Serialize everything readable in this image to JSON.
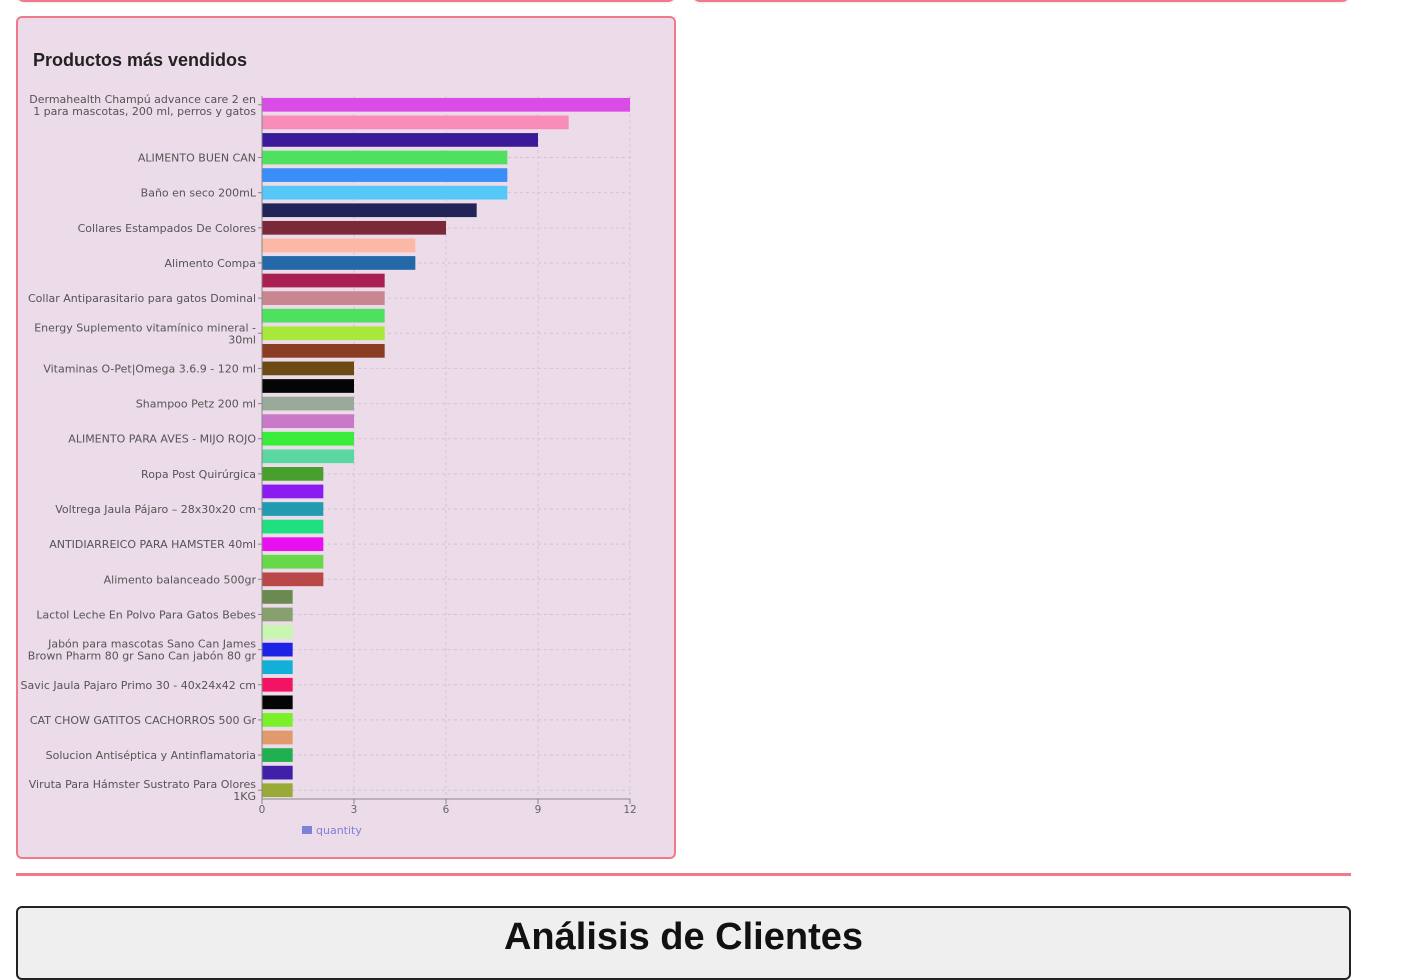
{
  "chart_card": {
    "title": "Productos más vendidos"
  },
  "chart_data": {
    "type": "bar",
    "orientation": "horizontal",
    "xlim": [
      0,
      12
    ],
    "xticks": [
      "0",
      "3",
      "6",
      "9",
      "12"
    ],
    "grid": true,
    "legend_position": "bottom",
    "categories": [
      "Dermahealth Champú advance care 2 en 1 para mascotas, 200 ml, perros y gatos",
      "",
      "",
      "ALIMENTO BUEN CAN",
      "",
      "Baño en seco 200mL",
      "",
      "Collares Estampados De Colores",
      "",
      "Alimento Compa",
      "",
      "Collar Antiparasitario para gatos Dominal",
      "",
      "Energy Suplemento vitamínico mineral - 30ml",
      "",
      "Vitaminas O-Pet|Omega 3.6.9 - 120 ml",
      "",
      "Shampoo Petz 200 ml",
      "",
      "ALIMENTO PARA AVES - MIJO ROJO",
      "",
      "Ropa Post Quirúrgica",
      "",
      "Voltrega Jaula Pájaro – 28x30x20 cm",
      "",
      "ANTIDIARREICO PARA HAMSTER 40ml",
      "",
      "Alimento balanceado 500gr",
      "",
      "Lactol Leche En Polvo Para Gatos Bebes",
      "",
      "Jabón para mascotas Sano Can James Brown Pharm 80 gr Sano Can jabón 80 gr",
      "",
      "Savic Jaula Pajaro Primo 30 - 40x24x42 cm",
      "",
      "CAT CHOW GATITOS CACHORROS 500 Gr",
      "",
      "Solucion Antiséptica y Antinflamatoria",
      "",
      "Viruta Para Hámster Sustrato Para Olores 1KG"
    ],
    "series": [
      {
        "name": "quantity",
        "values": [
          12,
          10,
          9,
          8,
          8,
          8,
          7,
          6,
          5,
          5,
          4,
          4,
          4,
          4,
          4,
          3,
          3,
          3,
          3,
          3,
          3,
          2,
          2,
          2,
          2,
          2,
          2,
          2,
          1,
          1,
          1,
          1,
          1,
          1,
          1,
          1,
          1,
          1,
          1,
          1
        ],
        "colors": [
          "#d94ce8",
          "#f88cb8",
          "#3b1a9a",
          "#4fe060",
          "#3a8ef8",
          "#56c8f8",
          "#222356",
          "#7a2938",
          "#fbb8a4",
          "#2468a8",
          "#aa1f52",
          "#c98590",
          "#4fe060",
          "#a8e83a",
          "#8a3d22",
          "#6b4a14",
          "#050505",
          "#9aaa9a",
          "#c87ac8",
          "#3aed3a",
          "#5ad8a0",
          "#48a02c",
          "#8a1cf2",
          "#229ab0",
          "#1ee080",
          "#e810f0",
          "#66d84a",
          "#b84848",
          "#6a8a52",
          "#88a070",
          "#c8f6b0",
          "#1e22e6",
          "#12b0d8",
          "#f41262",
          "#050505",
          "#7af02a",
          "#e09a6c",
          "#20b050",
          "#4020a8",
          "#9aaa38"
        ]
      }
    ]
  },
  "legend": {
    "label": "quantity",
    "color": "#7f80d8"
  },
  "section": {
    "title": "Análisis de Clientes"
  }
}
